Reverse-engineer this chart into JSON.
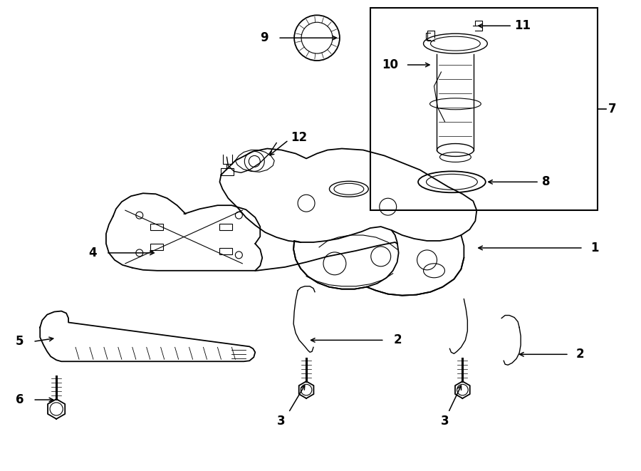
{
  "bg_color": "#ffffff",
  "line_color": "#000000",
  "fig_width": 9.0,
  "fig_height": 6.61,
  "dpi": 100,
  "lw_main": 1.3,
  "lw_thin": 0.8,
  "lw_med": 1.0,
  "label_fontsize": 12
}
